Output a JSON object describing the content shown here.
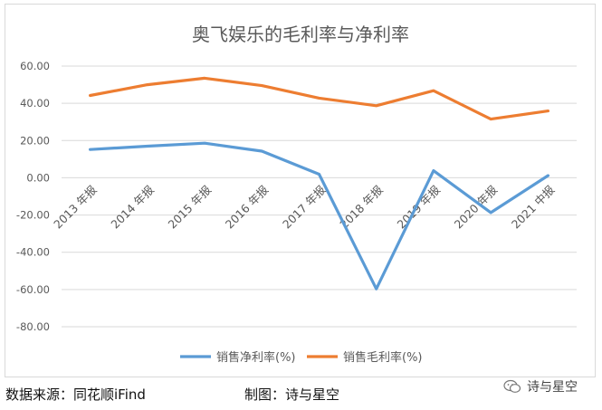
{
  "chart_data": {
    "type": "line",
    "title": "奥飞娱乐的毛利率与净利率",
    "categories": [
      "2013 年报",
      "2014 年报",
      "2015 年报",
      "2016 年报",
      "2017 年报",
      "2018 年报",
      "2019 年报",
      "2020 年报",
      "2021 中报"
    ],
    "series": [
      {
        "name": "销售净利率(%)",
        "color": "#5b9bd5",
        "values": [
          15.2,
          17.0,
          18.6,
          14.3,
          1.9,
          -59.7,
          3.8,
          -18.7,
          1.2
        ]
      },
      {
        "name": "销售毛利率(%)",
        "color": "#ed7d31",
        "values": [
          44.2,
          50.0,
          53.5,
          49.5,
          42.8,
          38.7,
          46.8,
          31.5,
          35.9
        ]
      }
    ],
    "yticks": [
      "60.00",
      "40.00",
      "20.00",
      "0.00",
      "-20.00",
      "-40.00",
      "-60.00",
      "-80.00"
    ],
    "ylim": [
      -80,
      60
    ],
    "grid": true,
    "legend": "bottom"
  },
  "footer": {
    "source": "数据来源：同花顺iFind",
    "credit": "制图：诗与星空"
  },
  "watermark": {
    "icon": "wechat-icon",
    "text": "诗与星空"
  }
}
